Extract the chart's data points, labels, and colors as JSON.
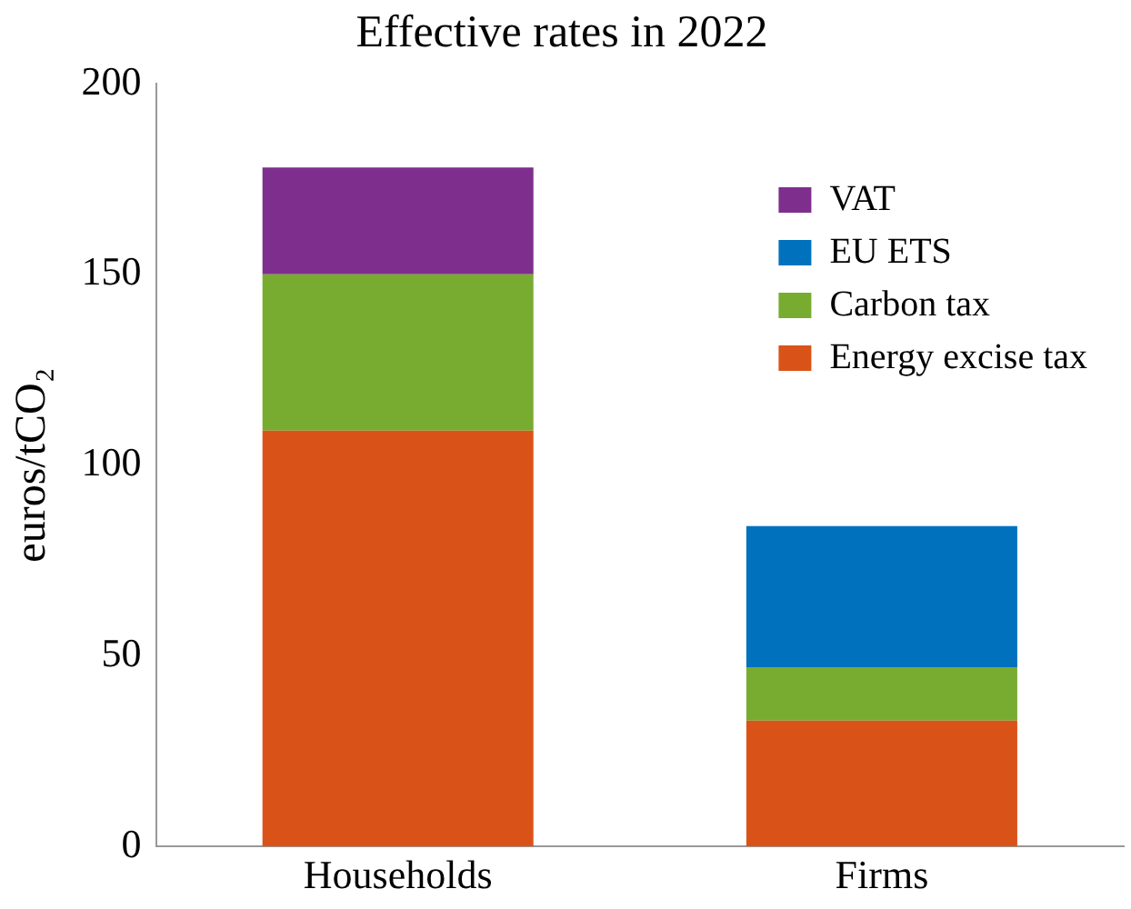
{
  "chart_data": {
    "type": "bar",
    "title": "Effective rates in 2022",
    "ylabel": "euros/tCO₂",
    "categories": [
      "Households",
      "Firms"
    ],
    "stacked": true,
    "series": [
      {
        "name": "Energy excise tax",
        "color": "#d95319",
        "values": [
          109,
          33
        ]
      },
      {
        "name": "Carbon tax",
        "color": "#77ac30",
        "values": [
          41,
          14
        ]
      },
      {
        "name": "EU ETS",
        "color": "#0072bd",
        "values": [
          null,
          37
        ]
      },
      {
        "name": "VAT",
        "color": "#7e2f8e",
        "values": [
          28,
          null
        ]
      }
    ],
    "ylim": [
      0,
      200
    ],
    "yticks": [
      0,
      50,
      100,
      150,
      200
    ],
    "grid": false,
    "legend": "top right"
  }
}
